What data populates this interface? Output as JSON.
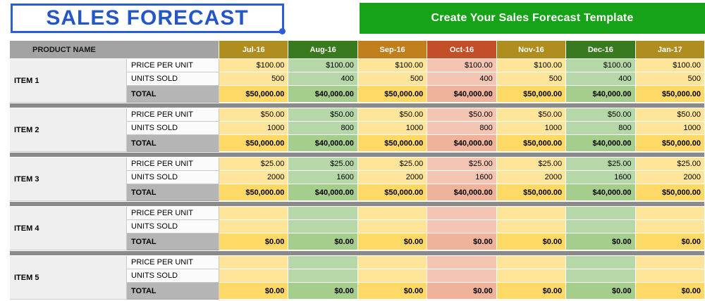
{
  "title": "SALES FORECAST",
  "banner": {
    "text": "Create Your Sales Forecast Template",
    "bg": "#17A317",
    "text_color": "#FFFFFF"
  },
  "colors": {
    "title_blue": "#2456C6",
    "title_border": "#2B5DD7",
    "header_gray": "#A3A3A3",
    "separator_gray": "#8A8A8A"
  },
  "table": {
    "product_header": "PRODUCT NAME",
    "row_labels": {
      "price": "PRICE PER UNIT",
      "units": "UNITS SOLD",
      "total": "TOTAL"
    },
    "months": [
      {
        "label": "Jul-16",
        "header_color": "#AF8D1E",
        "cell_color": "#FFE599",
        "total_color": "#FFD966"
      },
      {
        "label": "Aug-16",
        "header_color": "#3A7A1E",
        "cell_color": "#B6D7A8",
        "total_color": "#A5CD8C"
      },
      {
        "label": "Sep-16",
        "header_color": "#C07F1B",
        "cell_color": "#FFE599",
        "total_color": "#FFD966"
      },
      {
        "label": "Oct-16",
        "header_color": "#C34F28",
        "cell_color": "#F3C5B2",
        "total_color": "#EFB29B"
      },
      {
        "label": "Nov-16",
        "header_color": "#AF8D1E",
        "cell_color": "#FFE599",
        "total_color": "#FFD966"
      },
      {
        "label": "Dec-16",
        "header_color": "#3A7A1E",
        "cell_color": "#B6D7A8",
        "total_color": "#A5CD8C"
      },
      {
        "label": "Jan-17",
        "header_color": "#AF8D1E",
        "cell_color": "#FFE599",
        "total_color": "#FFD966"
      }
    ],
    "items": [
      {
        "name": "ITEM 1",
        "price": [
          "$100.00",
          "$100.00",
          "$100.00",
          "$100.00",
          "$100.00",
          "$100.00",
          "$100.00"
        ],
        "units": [
          "500",
          "400",
          "500",
          "400",
          "500",
          "400",
          "500"
        ],
        "total": [
          "$50,000.00",
          "$40,000.00",
          "$50,000.00",
          "$40,000.00",
          "$50,000.00",
          "$40,000.00",
          "$50,000.00"
        ]
      },
      {
        "name": "ITEM 2",
        "price": [
          "$50.00",
          "$50.00",
          "$50.00",
          "$50.00",
          "$50.00",
          "$50.00",
          "$50.00"
        ],
        "units": [
          "1000",
          "800",
          "1000",
          "800",
          "1000",
          "800",
          "1000"
        ],
        "total": [
          "$50,000.00",
          "$40,000.00",
          "$50,000.00",
          "$40,000.00",
          "$50,000.00",
          "$40,000.00",
          "$50,000.00"
        ]
      },
      {
        "name": "ITEM 3",
        "price": [
          "$25.00",
          "$25.00",
          "$25.00",
          "$25.00",
          "$25.00",
          "$25.00",
          "$25.00"
        ],
        "units": [
          "2000",
          "1600",
          "2000",
          "1600",
          "2000",
          "1600",
          "2000"
        ],
        "total": [
          "$50,000.00",
          "$40,000.00",
          "$50,000.00",
          "$40,000.00",
          "$50,000.00",
          "$40,000.00",
          "$50,000.00"
        ]
      },
      {
        "name": "ITEM 4",
        "price": [
          "",
          "",
          "",
          "",
          "",
          "",
          ""
        ],
        "units": [
          "",
          "",
          "",
          "",
          "",
          "",
          ""
        ],
        "total": [
          "$0.00",
          "$0.00",
          "$0.00",
          "$0.00",
          "$0.00",
          "$0.00",
          "$0.00"
        ]
      },
      {
        "name": "ITEM 5",
        "price": [
          "",
          "",
          "",
          "",
          "",
          "",
          ""
        ],
        "units": [
          "",
          "",
          "",
          "",
          "",
          "",
          ""
        ],
        "total": [
          "$0.00",
          "$0.00",
          "$0.00",
          "$0.00",
          "$0.00",
          "$0.00",
          "$0.00"
        ]
      }
    ]
  }
}
